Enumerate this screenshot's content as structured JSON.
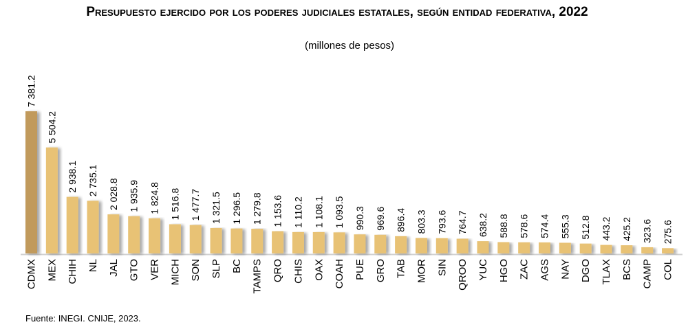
{
  "chart_data": {
    "type": "bar",
    "title": "Presupuesto ejercido por los poderes judiciales estatales, según entidad federativa, 2022",
    "subtitle": "(millones de pesos)",
    "categories": [
      "CDMX",
      "MEX",
      "CHIH",
      "NL",
      "JAL",
      "GTO",
      "VER",
      "MICH",
      "SON",
      "SLP",
      "BC",
      "TAMPS",
      "QRO",
      "CHIS",
      "OAX",
      "COAH",
      "PUE",
      "GRO",
      "TAB",
      "MOR",
      "SIN",
      "QROO",
      "YUC",
      "HGO",
      "ZAC",
      "AGS",
      "NAY",
      "DGO",
      "TLAX",
      "BCS",
      "CAMP",
      "COL"
    ],
    "values": [
      7381.2,
      5504.2,
      2938.1,
      2735.1,
      2028.8,
      1935.9,
      1824.8,
      1516.8,
      1477.7,
      1321.5,
      1296.5,
      1279.8,
      1153.6,
      1110.2,
      1108.1,
      1093.5,
      990.3,
      969.6,
      896.4,
      803.3,
      793.6,
      764.7,
      638.2,
      588.8,
      578.6,
      574.4,
      555.3,
      512.8,
      443.2,
      425.2,
      323.6,
      275.6
    ],
    "value_labels": [
      "7 381.2",
      "5 504.2",
      "2 938.1",
      "2 735.1",
      "2 028.8",
      "1 935.9",
      "1 824.8",
      "1 516.8",
      "1 477.7",
      "1 321.5",
      "1 296.5",
      "1 279.8",
      "1 153.6",
      "1 110.2",
      "1 108.1",
      "1 093.5",
      "990.3",
      "969.6",
      "896.4",
      "803.3",
      "793.6",
      "764.7",
      "638.2",
      "588.8",
      "578.6",
      "574.4",
      "555.3",
      "512.8",
      "443.2",
      "425.2",
      "323.6",
      "275.6"
    ],
    "xlabel": "",
    "ylabel": "",
    "ylim": [
      0,
      7381.2
    ],
    "grid": false,
    "legend": "none",
    "colors": {
      "highlight": "#C19A5B",
      "bar": "#E8C274",
      "shadow": "#BDBDBD",
      "axis": "#D0D0D0"
    }
  },
  "source": "Fuente: INEGI. CNIJE, 2023."
}
